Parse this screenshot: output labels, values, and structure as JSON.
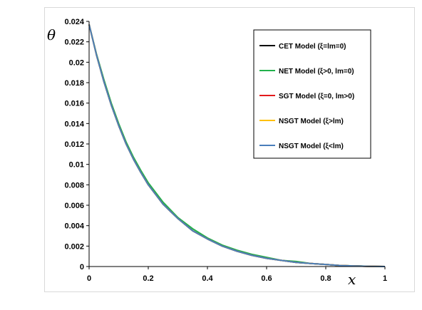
{
  "chart_data": {
    "type": "line",
    "ylabel": "θ",
    "xlabel": "x",
    "xlim": [
      0,
      1
    ],
    "ylim": [
      0,
      0.024
    ],
    "xticks": [
      "0",
      "0.2",
      "0.4",
      "0.6",
      "0.8",
      "1"
    ],
    "yticks": [
      "0",
      "0.002",
      "0.004",
      "0.006",
      "0.008",
      "0.01",
      "0.012",
      "0.014",
      "0.016",
      "0.018",
      "0.02",
      "0.022",
      "0.024"
    ],
    "grid": false,
    "legend_position": "top-right",
    "x": [
      0,
      0.025,
      0.05,
      0.075,
      0.1,
      0.125,
      0.15,
      0.175,
      0.2,
      0.25,
      0.3,
      0.35,
      0.4,
      0.45,
      0.5,
      0.55,
      0.6,
      0.65,
      0.7,
      0.75,
      0.8,
      0.85,
      0.9,
      0.95,
      1.0
    ],
    "series": [
      {
        "name": "CET Model (ξ=lm=0)",
        "color": "#000000",
        "values": [
          0.0237,
          0.0207,
          0.0181,
          0.0158,
          0.0138,
          0.012,
          0.0105,
          0.0092,
          0.008,
          0.0061,
          0.0047,
          0.0035,
          0.0027,
          0.002,
          0.0015,
          0.0011,
          0.0008,
          0.0006,
          0.0004,
          0.0003,
          0.0002,
          0.0001,
          5e-05,
          2e-05,
          0.0
        ]
      },
      {
        "name": "NET Model (ξ>0, lm=0)",
        "color": "#22b14c",
        "values": [
          0.0237,
          0.0208,
          0.0183,
          0.016,
          0.014,
          0.0122,
          0.0107,
          0.0094,
          0.0082,
          0.0063,
          0.0048,
          0.0037,
          0.0028,
          0.0021,
          0.0016,
          0.0012,
          0.0009,
          0.0006,
          0.0005,
          0.0003,
          0.0002,
          0.0001,
          6e-05,
          2e-05,
          0.0
        ]
      },
      {
        "name": "SGT Model (ξ=0, lm>0)",
        "color": "#e31a1c",
        "values": [
          0.0237,
          0.0207,
          0.0181,
          0.0158,
          0.0138,
          0.012,
          0.0105,
          0.0092,
          0.008,
          0.0061,
          0.0047,
          0.0035,
          0.0027,
          0.002,
          0.0015,
          0.0011,
          0.0008,
          0.0006,
          0.0004,
          0.0003,
          0.0002,
          0.0001,
          5e-05,
          2e-05,
          0.0
        ]
      },
      {
        "name": "NSGT Model (ξ>lm)",
        "color": "#ffc000",
        "values": [
          0.0237,
          0.0207,
          0.0181,
          0.0158,
          0.0138,
          0.012,
          0.0105,
          0.0092,
          0.008,
          0.0061,
          0.0047,
          0.0035,
          0.0027,
          0.002,
          0.0015,
          0.0011,
          0.0008,
          0.0006,
          0.0004,
          0.0003,
          0.0002,
          0.0001,
          5e-05,
          2e-05,
          0.0
        ]
      },
      {
        "name": "NSGT Model (ξ<lm)",
        "color": "#4a7ebb",
        "values": [
          0.0237,
          0.0207,
          0.0181,
          0.0158,
          0.0138,
          0.012,
          0.0105,
          0.0092,
          0.008,
          0.0061,
          0.0047,
          0.0035,
          0.0027,
          0.002,
          0.0015,
          0.0011,
          0.0008,
          0.0006,
          0.0004,
          0.0003,
          0.0002,
          0.0001,
          5e-05,
          2e-05,
          0.0
        ]
      }
    ]
  }
}
